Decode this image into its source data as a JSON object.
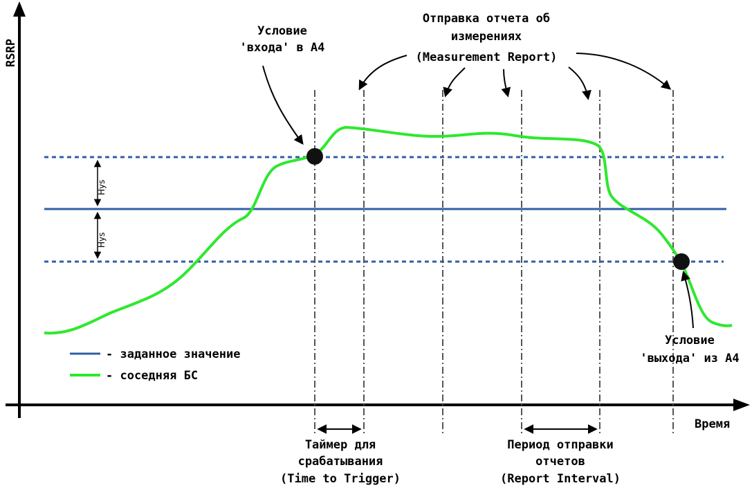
{
  "axes": {
    "y_label": "RSRP",
    "x_label": "Время"
  },
  "legend": {
    "items": [
      {
        "label": "- заданное значение",
        "color": "#2f5fa7"
      },
      {
        "label": "- соседняя БС",
        "color": "#2ee82e"
      }
    ]
  },
  "annotations": {
    "entry": [
      "Условие",
      "'входа' в А4"
    ],
    "report": [
      "Отправка отчета об",
      "измерениях",
      "(Measurement Report)"
    ],
    "exit": [
      "Условие",
      "'выхода' из А4"
    ],
    "ttt": [
      "Таймер для",
      "срабатывания",
      "(Time to Trigger)"
    ],
    "interval": [
      "Период отправки",
      "отчетов",
      "(Report Interval)"
    ],
    "hys_upper": "Hys",
    "hys_lower": "Hys"
  },
  "colors": {
    "threshold": "#2f5fa7",
    "neighbor": "#2ee82e",
    "axis": "#000000",
    "marker_line": "#555555"
  }
}
